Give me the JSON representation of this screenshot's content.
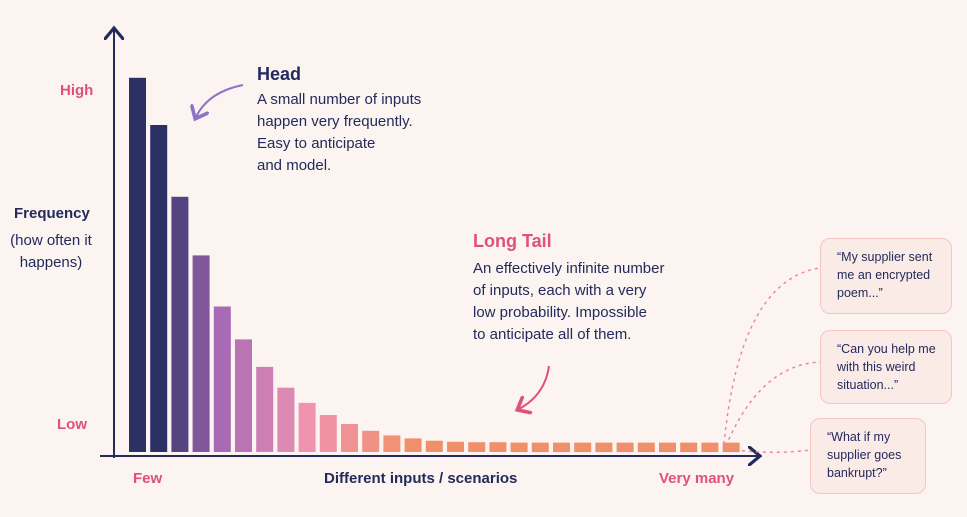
{
  "chart_data": {
    "type": "bar",
    "x_axis_label": "Different inputs / scenarios",
    "x_range_labels": {
      "start": "Few",
      "end": "Very many"
    },
    "y_axis_label": "Frequency",
    "y_axis_sublabel_lines": [
      "(how often it",
      "happens)"
    ],
    "y_range_labels": {
      "high": "High",
      "low": "Low"
    },
    "ylim": [
      0,
      1
    ],
    "values": [
      0.99,
      0.865,
      0.675,
      0.52,
      0.385,
      0.298,
      0.225,
      0.17,
      0.13,
      0.098,
      0.074,
      0.056,
      0.044,
      0.036,
      0.03,
      0.027,
      0.026,
      0.026,
      0.025,
      0.025,
      0.025,
      0.025,
      0.025,
      0.025,
      0.025,
      0.025,
      0.025,
      0.025,
      0.025
    ],
    "colors": {
      "head": "#2c3165",
      "mid": "#a86ab5",
      "pink": "#ef93b0",
      "tail": "#f0906a",
      "axis": "#232a5c",
      "accent": "#e0507a",
      "head_arrow": "#8b74c6"
    },
    "annotations": {
      "head": {
        "title": "Head",
        "lines": [
          "A small number of inputs",
          "happen very frequently.",
          "Easy to anticipate",
          "and model."
        ]
      },
      "long_tail": {
        "title": "Long Tail",
        "lines": [
          "An effectively infinite number",
          "of inputs, each with a very",
          "low probability. Impossible",
          "to anticipate all of them."
        ]
      }
    },
    "example_bubbles": [
      {
        "lines": [
          "“My supplier sent",
          "me an encrypted",
          "poem...”"
        ]
      },
      {
        "lines": [
          "“Can you help me",
          "with this weird",
          "situation...”"
        ]
      },
      {
        "lines": [
          "“What if my",
          "supplier goes",
          "bankrupt?”"
        ]
      }
    ]
  }
}
